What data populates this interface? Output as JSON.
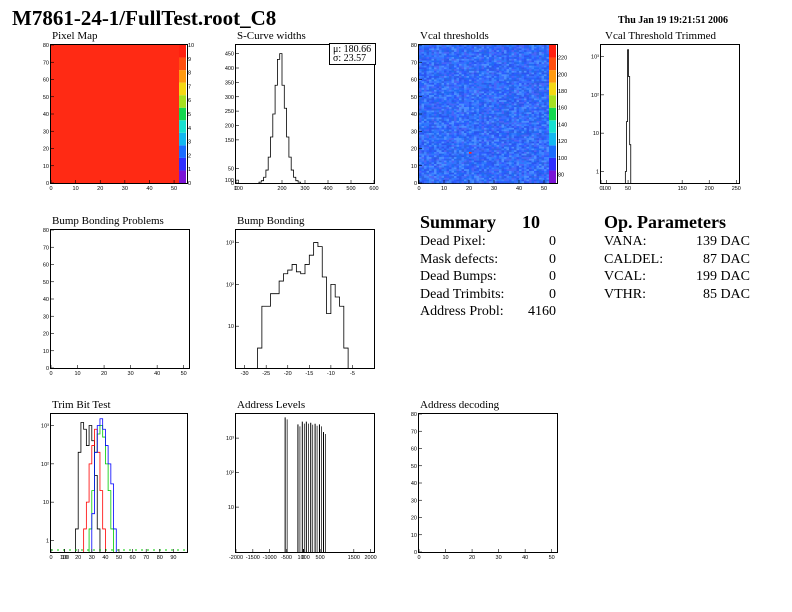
{
  "header": {
    "title": "M7861-24-1/FullTest.root_C8",
    "timestamp": "Thu Jan 19 19:21:51 2006"
  },
  "panels": {
    "pixel_map": {
      "title": "Pixel Map"
    },
    "scurve": {
      "title": "S-Curve widths",
      "stats": {
        "mu": "μ: 180.66",
        "sigma": "σ: 23.57"
      }
    },
    "vcal_thr": {
      "title": "Vcal thresholds"
    },
    "vcal_trim": {
      "title": "Vcal Threshold Trimmed"
    },
    "bump_problems": {
      "title": "Bump Bonding Problems"
    },
    "bump_bonding": {
      "title": "Bump Bonding"
    },
    "trim_bit": {
      "title": "Trim Bit Test"
    },
    "addr_levels": {
      "title": "Address Levels"
    },
    "addr_decoding": {
      "title": "Address decoding"
    }
  },
  "summary": {
    "title": "Summary",
    "value": "10",
    "rows": [
      {
        "label": "Dead Pixel:",
        "value": "0"
      },
      {
        "label": "Mask defects:",
        "value": "0"
      },
      {
        "label": "Dead Bumps:",
        "value": "0"
      },
      {
        "label": "Dead Trimbits:",
        "value": "0"
      },
      {
        "label": "Address Probl:",
        "value": "4160"
      }
    ]
  },
  "op_params": {
    "title": "Op. Parameters",
    "rows": [
      {
        "label": "VANA:",
        "value": "139 DAC"
      },
      {
        "label": "CALDEL:",
        "value": "87 DAC"
      },
      {
        "label": "VCAL:",
        "value": "199 DAC"
      },
      {
        "label": "VTHR:",
        "value": "85 DAC"
      }
    ]
  },
  "colors": {
    "palette": [
      "#7b14d6",
      "#2f2fff",
      "#1c6dff",
      "#14b8f0",
      "#18e0d0",
      "#14d850",
      "#a6e020",
      "#f5d814",
      "#ff9a10",
      "#ff5010",
      "#ff2010"
    ],
    "pixel_map_fill": "#ff2a14",
    "trim_series": [
      "#000000",
      "#ff0000",
      "#00cc00",
      "#0000ff"
    ]
  },
  "chart_data": [
    {
      "id": "pixel_map",
      "type": "heatmap",
      "xlim": [
        0,
        52
      ],
      "ylim": [
        0,
        80
      ],
      "xticks": [
        "0",
        "10",
        "20",
        "30",
        "40",
        "50"
      ],
      "yticks": [
        "0",
        "10",
        "20",
        "30",
        "40",
        "50",
        "60",
        "70",
        "80"
      ],
      "zlim": [
        0,
        10
      ],
      "uniform_value": 10,
      "zticks": [
        "0",
        "1",
        "2",
        "3",
        "4",
        "5",
        "6",
        "7",
        "8",
        "9",
        "10"
      ]
    },
    {
      "id": "scurve",
      "type": "bar",
      "xlim": [
        0,
        600
      ],
      "ylim": [
        0,
        480
      ],
      "xticks": [
        "0",
        "100",
        "200",
        "300",
        "400",
        "500",
        "600"
      ],
      "yticks": [
        "0",
        "50",
        "100",
        "150",
        "200",
        "250",
        "300",
        "350",
        "400",
        "450"
      ],
      "bin_width": 10,
      "bins": [
        [
          100,
          3
        ],
        [
          110,
          8
        ],
        [
          120,
          20
        ],
        [
          130,
          45
        ],
        [
          140,
          90
        ],
        [
          150,
          160
        ],
        [
          160,
          240
        ],
        [
          170,
          340
        ],
        [
          180,
          430
        ],
        [
          190,
          450
        ],
        [
          200,
          340
        ],
        [
          210,
          260
        ],
        [
          220,
          160
        ],
        [
          230,
          90
        ],
        [
          240,
          45
        ],
        [
          250,
          20
        ],
        [
          260,
          8
        ],
        [
          270,
          3
        ]
      ]
    },
    {
      "id": "vcal_thr",
      "type": "heatmap",
      "xlim": [
        0,
        52
      ],
      "ylim": [
        0,
        80
      ],
      "xticks": [
        "0",
        "10",
        "20",
        "30",
        "40",
        "50"
      ],
      "yticks": [
        "0",
        "10",
        "20",
        "30",
        "40",
        "50",
        "60",
        "70",
        "80"
      ],
      "zlim": [
        70,
        235
      ],
      "z_mean": 105,
      "zticks": [
        "80",
        "100",
        "120",
        "140",
        "160",
        "180",
        "200",
        "220"
      ]
    },
    {
      "id": "vcal_trim",
      "type": "bar",
      "log_y": true,
      "xlim": [
        0,
        255
      ],
      "ylim": [
        0.5,
        2000
      ],
      "xticks": [
        "0",
        "50",
        "100",
        "150",
        "200",
        "250"
      ],
      "yticks": [
        "1",
        "10",
        "10²",
        "10³"
      ],
      "bins": [
        [
          45,
          1
        ],
        [
          47,
          20
        ],
        [
          49,
          1500
        ],
        [
          51,
          300
        ],
        [
          53,
          5
        ]
      ]
    },
    {
      "id": "bump_problems",
      "type": "heatmap",
      "xlim": [
        0,
        52
      ],
      "ylim": [
        0,
        80
      ],
      "xticks": [
        "0",
        "10",
        "20",
        "30",
        "40",
        "50"
      ],
      "yticks": [
        "0",
        "10",
        "20",
        "30",
        "40",
        "50",
        "60",
        "70",
        "80"
      ]
    },
    {
      "id": "bump_bonding",
      "type": "bar",
      "log_y": true,
      "xlim": [
        -32,
        0
      ],
      "ylim": [
        1,
        2000
      ],
      "xticks": [
        "-30",
        "-25",
        "-20",
        "-15",
        "-10",
        "-5"
      ],
      "yticks": [
        "10",
        "10²",
        "10³"
      ],
      "bin_width": 1,
      "bins": [
        [
          -27,
          3
        ],
        [
          -26,
          30
        ],
        [
          -25,
          30
        ],
        [
          -24,
          60
        ],
        [
          -23,
          60
        ],
        [
          -22,
          120
        ],
        [
          -21,
          180
        ],
        [
          -20,
          220
        ],
        [
          -19,
          300
        ],
        [
          -18,
          200
        ],
        [
          -17,
          180
        ],
        [
          -16,
          300
        ],
        [
          -15,
          500
        ],
        [
          -14,
          1000
        ],
        [
          -13,
          800
        ],
        [
          -12,
          150
        ],
        [
          -11,
          20
        ],
        [
          -10,
          100
        ],
        [
          -9,
          50
        ],
        [
          -8,
          30
        ],
        [
          -7,
          3
        ]
      ]
    },
    {
      "id": "trim_bit",
      "type": "line",
      "log_y": true,
      "xlim": [
        0,
        100
      ],
      "ylim": [
        0.5,
        2000
      ],
      "xticks": [
        "0",
        "10",
        "20",
        "30",
        "40",
        "50",
        "60",
        "70",
        "80",
        "90",
        "100"
      ],
      "yticks": [
        "1",
        "10",
        "10²",
        "10³"
      ],
      "series": [
        {
          "points": [
            [
              18,
              2
            ],
            [
              20,
              200
            ],
            [
              22,
              1200
            ],
            [
              24,
              800
            ],
            [
              26,
              300
            ],
            [
              28,
              1000
            ],
            [
              30,
              400
            ],
            [
              32,
              50
            ],
            [
              34,
              2
            ]
          ]
        },
        {
          "points": [
            [
              24,
              2
            ],
            [
              26,
              10
            ],
            [
              28,
              100
            ],
            [
              30,
              300
            ],
            [
              32,
              800
            ],
            [
              34,
              200
            ],
            [
              36,
              20
            ],
            [
              38,
              2
            ]
          ]
        },
        {
          "points": [
            [
              28,
              2
            ],
            [
              30,
              20
            ],
            [
              32,
              200
            ],
            [
              34,
              600
            ],
            [
              36,
              1000
            ],
            [
              38,
              500
            ],
            [
              40,
              100
            ],
            [
              42,
              20
            ],
            [
              44,
              2
            ]
          ]
        },
        {
          "points": [
            [
              30,
              5
            ],
            [
              32,
              200
            ],
            [
              34,
              1000
            ],
            [
              36,
              1500
            ],
            [
              38,
              800
            ],
            [
              40,
              300
            ],
            [
              42,
              100
            ],
            [
              44,
              30
            ],
            [
              46,
              2
            ]
          ]
        }
      ]
    },
    {
      "id": "addr_levels",
      "type": "bar",
      "log_y": true,
      "xlim": [
        -2000,
        2100
      ],
      "ylim": [
        0.5,
        5000
      ],
      "xticks": [
        "-2000",
        "-1500",
        "-1000",
        "-500",
        "0",
        "500",
        "1000",
        "1500",
        "2000"
      ],
      "yticks": [
        "10",
        "10²",
        "10³"
      ],
      "spikes": [
        [
          -540,
          4000
        ],
        [
          -160,
          2500
        ],
        [
          -30,
          3000
        ],
        [
          90,
          3000
        ],
        [
          220,
          2800
        ],
        [
          350,
          2600
        ],
        [
          480,
          2500
        ],
        [
          600,
          1500
        ]
      ]
    },
    {
      "id": "addr_decoding",
      "type": "heatmap",
      "xlim": [
        0,
        52
      ],
      "ylim": [
        0,
        80
      ],
      "xticks": [
        "0",
        "10",
        "20",
        "30",
        "40",
        "50"
      ],
      "yticks": [
        "0",
        "10",
        "20",
        "30",
        "40",
        "50",
        "60",
        "70",
        "80"
      ]
    }
  ]
}
